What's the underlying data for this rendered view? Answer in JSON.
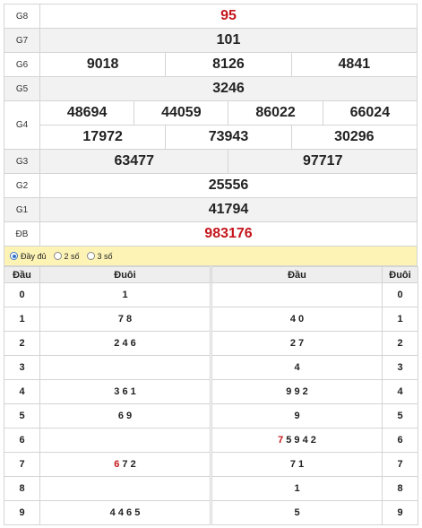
{
  "prizes": [
    {
      "label": "G8",
      "values": [
        "95"
      ],
      "red": true
    },
    {
      "label": "G7",
      "values": [
        "101"
      ]
    },
    {
      "label": "G6",
      "values": [
        "9018",
        "8126",
        "4841"
      ]
    },
    {
      "label": "G5",
      "values": [
        "3246"
      ]
    },
    {
      "label": "G4",
      "row1": [
        "48694",
        "44059",
        "86022",
        "66024"
      ],
      "row2": [
        "17972",
        "73943",
        "30296"
      ]
    },
    {
      "label": "G3",
      "values": [
        "63477",
        "97717"
      ]
    },
    {
      "label": "G2",
      "values": [
        "25556"
      ]
    },
    {
      "label": "G1",
      "values": [
        "41794"
      ]
    },
    {
      "label": "ĐB",
      "values": [
        "983176"
      ],
      "red": true
    }
  ],
  "options": [
    "Đầy đủ",
    "2 số",
    "3 số"
  ],
  "selected_option": "Đầy đủ",
  "loto": {
    "headers": {
      "dau": "Đầu",
      "duoi": "Đuôi",
      "dau2": "Đầu",
      "duoi2": "Đuôi"
    },
    "rows": [
      {
        "digit": "0",
        "left": "1",
        "right": ""
      },
      {
        "digit": "1",
        "left": "7 8",
        "right": "4 0"
      },
      {
        "digit": "2",
        "left": "2 4 6",
        "right": "2 7"
      },
      {
        "digit": "3",
        "left": "",
        "right": "4"
      },
      {
        "digit": "4",
        "left": "3 6 1",
        "right": "9 9 2"
      },
      {
        "digit": "5",
        "left": "6 9",
        "right": "9"
      },
      {
        "digit": "6",
        "left": "",
        "right_red": "7",
        "right": " 5 9 4 2"
      },
      {
        "digit": "7",
        "left_red": "6",
        "left": " 7 2",
        "right": "7 1"
      },
      {
        "digit": "8",
        "left": "",
        "right": "1"
      },
      {
        "digit": "9",
        "left": "4 4 6 5",
        "right": "5"
      }
    ]
  },
  "colors": {
    "special_red": "#c4161c",
    "row_shade": "#f2f2f2",
    "filter_bar": "#fdf3b5"
  }
}
